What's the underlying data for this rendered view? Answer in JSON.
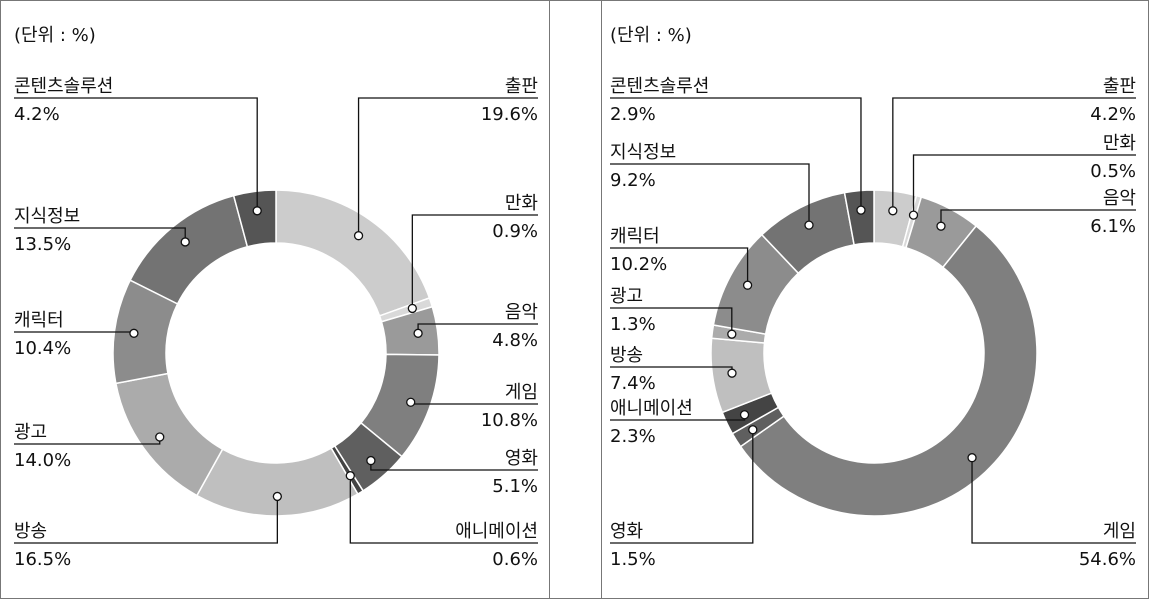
{
  "chart_data": [
    {
      "type": "pie",
      "unit_label": "(단위 : %)",
      "start_angle_deg": 0,
      "direction": "clockwise",
      "slices": [
        {
          "label": "출판",
          "value": 19.6,
          "value_text": "19.6%",
          "color": "#cccccc"
        },
        {
          "label": "만화",
          "value": 0.9,
          "value_text": "0.9%",
          "color": "#d9d9d9"
        },
        {
          "label": "음악",
          "value": 4.8,
          "value_text": "4.8%",
          "color": "#9a9a9a"
        },
        {
          "label": "게임",
          "value": 10.8,
          "value_text": "10.8%",
          "color": "#7f7f7f"
        },
        {
          "label": "영화",
          "value": 5.1,
          "value_text": "5.1%",
          "color": "#5f5f5f"
        },
        {
          "label": "애니메이션",
          "value": 0.6,
          "value_text": "0.6%",
          "color": "#444444"
        },
        {
          "label": "방송",
          "value": 16.5,
          "value_text": "16.5%",
          "color": "#bfbfbf"
        },
        {
          "label": "광고",
          "value": 14.0,
          "value_text": "14.0%",
          "color": "#ababab"
        },
        {
          "label": "캐릭터",
          "value": 10.4,
          "value_text": "10.4%",
          "color": "#8c8c8c"
        },
        {
          "label": "지식정보",
          "value": 13.5,
          "value_text": "13.5%",
          "color": "#737373"
        },
        {
          "label": "콘텐츠솔루션",
          "value": 4.2,
          "value_text": "4.2%",
          "color": "#555555"
        }
      ]
    },
    {
      "type": "pie",
      "unit_label": "(단위 : %)",
      "start_angle_deg": 0,
      "direction": "clockwise",
      "slices": [
        {
          "label": "출판",
          "value": 4.2,
          "value_text": "4.2%",
          "color": "#cccccc"
        },
        {
          "label": "만화",
          "value": 0.5,
          "value_text": "0.5%",
          "color": "#d9d9d9"
        },
        {
          "label": "음악",
          "value": 6.1,
          "value_text": "6.1%",
          "color": "#9a9a9a"
        },
        {
          "label": "게임",
          "value": 54.6,
          "value_text": "54.6%",
          "color": "#7f7f7f"
        },
        {
          "label": "영화",
          "value": 1.5,
          "value_text": "1.5%",
          "color": "#5f5f5f"
        },
        {
          "label": "애니메이션",
          "value": 2.3,
          "value_text": "2.3%",
          "color": "#444444"
        },
        {
          "label": "방송",
          "value": 7.4,
          "value_text": "7.4%",
          "color": "#bfbfbf"
        },
        {
          "label": "광고",
          "value": 1.3,
          "value_text": "1.3%",
          "color": "#ababab"
        },
        {
          "label": "캐릭터",
          "value": 10.2,
          "value_text": "10.2%",
          "color": "#8c8c8c"
        },
        {
          "label": "지식정보",
          "value": 9.2,
          "value_text": "9.2%",
          "color": "#737373"
        },
        {
          "label": "콘텐츠솔루션",
          "value": 2.9,
          "value_text": "2.9%",
          "color": "#555555"
        }
      ]
    }
  ]
}
